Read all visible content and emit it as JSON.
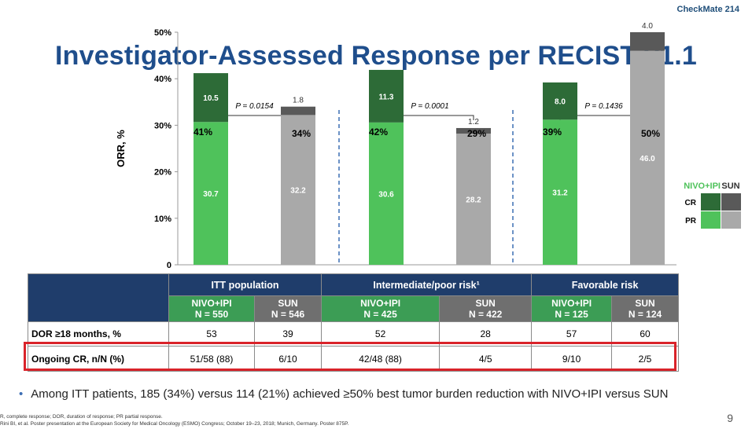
{
  "badge": "CheckMate 214",
  "title": "Investigator-Assessed Response per RECIST v1.1",
  "colors": {
    "nivo_cr": "#2d6b37",
    "nivo_pr": "#4fc25b",
    "sun_cr": "#595959",
    "sun_pr": "#a9a9a9",
    "header_blue": "#1f3d6b",
    "title_blue": "#1f4e8c",
    "highlight_red": "#d9232a"
  },
  "chart_data": {
    "type": "bar",
    "stacked": true,
    "ylabel": "ORR, %",
    "ylim": [
      0,
      50
    ],
    "yticks": [
      "0",
      "10%",
      "20%",
      "30%",
      "40%",
      "50%"
    ],
    "groups": [
      {
        "p_value": "P = 0.0154",
        "bars": [
          {
            "arm": "NIVO+IPI",
            "total_label": "41%",
            "pr": 30.7,
            "cr": 10.5,
            "pr_label": "30.7",
            "cr_label": "10.5"
          },
          {
            "arm": "SUN",
            "total_label": "34%",
            "pr": 32.2,
            "cr": 1.8,
            "pr_label": "32.2",
            "cr_label": "1.8"
          }
        ]
      },
      {
        "p_value": "P = 0.0001",
        "bars": [
          {
            "arm": "NIVO+IPI",
            "total_label": "42%",
            "pr": 30.6,
            "cr": 11.3,
            "pr_label": "30.6",
            "cr_label": "11.3"
          },
          {
            "arm": "SUN",
            "total_label": "29%",
            "pr": 28.2,
            "cr": 1.2,
            "pr_label": "28.2",
            "cr_label": "1.2"
          }
        ]
      },
      {
        "p_value": "P = 0.1436",
        "bars": [
          {
            "arm": "NIVO+IPI",
            "total_label": "39%",
            "pr": 31.2,
            "cr": 8.0,
            "pr_label": "31.2",
            "cr_label": "8.0"
          },
          {
            "arm": "SUN",
            "total_label": "50%",
            "pr": 46.0,
            "cr": 4.0,
            "pr_label": "46.0",
            "cr_label": "4.0"
          }
        ]
      }
    ],
    "legend": {
      "nivo": "NIVO+IPI",
      "sun": "SUN",
      "cr": "CR",
      "pr": "PR"
    }
  },
  "table": {
    "groups": [
      "ITT population",
      "Intermediate/poor risk¹",
      "Favorable risk"
    ],
    "subheaders": [
      {
        "arm": "NIVO+IPI",
        "n": "N = 550"
      },
      {
        "arm": "SUN",
        "n": "N = 546"
      },
      {
        "arm": "NIVO+IPI",
        "n": "N = 425"
      },
      {
        "arm": "SUN",
        "n": "N = 422"
      },
      {
        "arm": "NIVO+IPI",
        "n": "N = 125"
      },
      {
        "arm": "SUN",
        "n": "N = 124"
      }
    ],
    "rows": [
      {
        "label": "DOR ≥18 months, %",
        "cells": [
          "53",
          "39",
          "52",
          "28",
          "57",
          "60"
        ]
      },
      {
        "label": "Ongoing CR, n/N (%)",
        "cells": [
          "51/58 (88)",
          "6/10",
          "42/48 (88)",
          "4/5",
          "9/10",
          "2/5"
        ]
      }
    ]
  },
  "bullet": "Among ITT patients, 185 (34%) versus 114 (21%) achieved ≥50% best tumor burden reduction with NIVO+IPI versus SUN",
  "footnotes": [
    "R, complete response; DOR, duration of response; PR partial response.",
    "Rini BI, et al. Poster presentation at the European Society for Medical Oncology (ESMO) Congress; October 19–23, 2018; Munich, Germany. Poster 875P."
  ],
  "page_number": "9"
}
